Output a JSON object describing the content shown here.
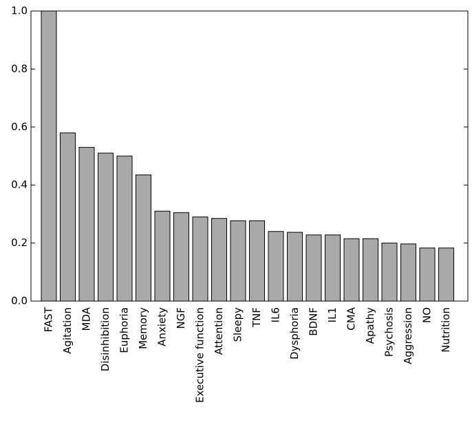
{
  "chart_data": {
    "type": "bar",
    "categories": [
      "FAST",
      "Agitation",
      "MDA",
      "Disinhibition",
      "Euphoria",
      "Memory",
      "Anxiety",
      "NGF",
      "Executive function",
      "Attention",
      "Sleepy",
      "TNF",
      "IL6",
      "Dysphoria",
      "BDNF",
      "IL1",
      "CMA",
      "Apathy",
      "Psychosis",
      "Aggression",
      "NO",
      "Nutrition"
    ],
    "values": [
      1.0,
      0.58,
      0.53,
      0.51,
      0.5,
      0.435,
      0.31,
      0.305,
      0.29,
      0.285,
      0.277,
      0.277,
      0.24,
      0.237,
      0.228,
      0.228,
      0.215,
      0.215,
      0.2,
      0.197,
      0.183,
      0.183
    ],
    "color": "#a9a9a9",
    "ylim": [
      0,
      1.0
    ],
    "yticks": [
      {
        "value": 0,
        "label": "0.0"
      },
      0.2,
      0.4,
      0.6,
      0.8,
      {
        "value": 1.0,
        "label": "1.0"
      }
    ],
    "grid": false
  }
}
